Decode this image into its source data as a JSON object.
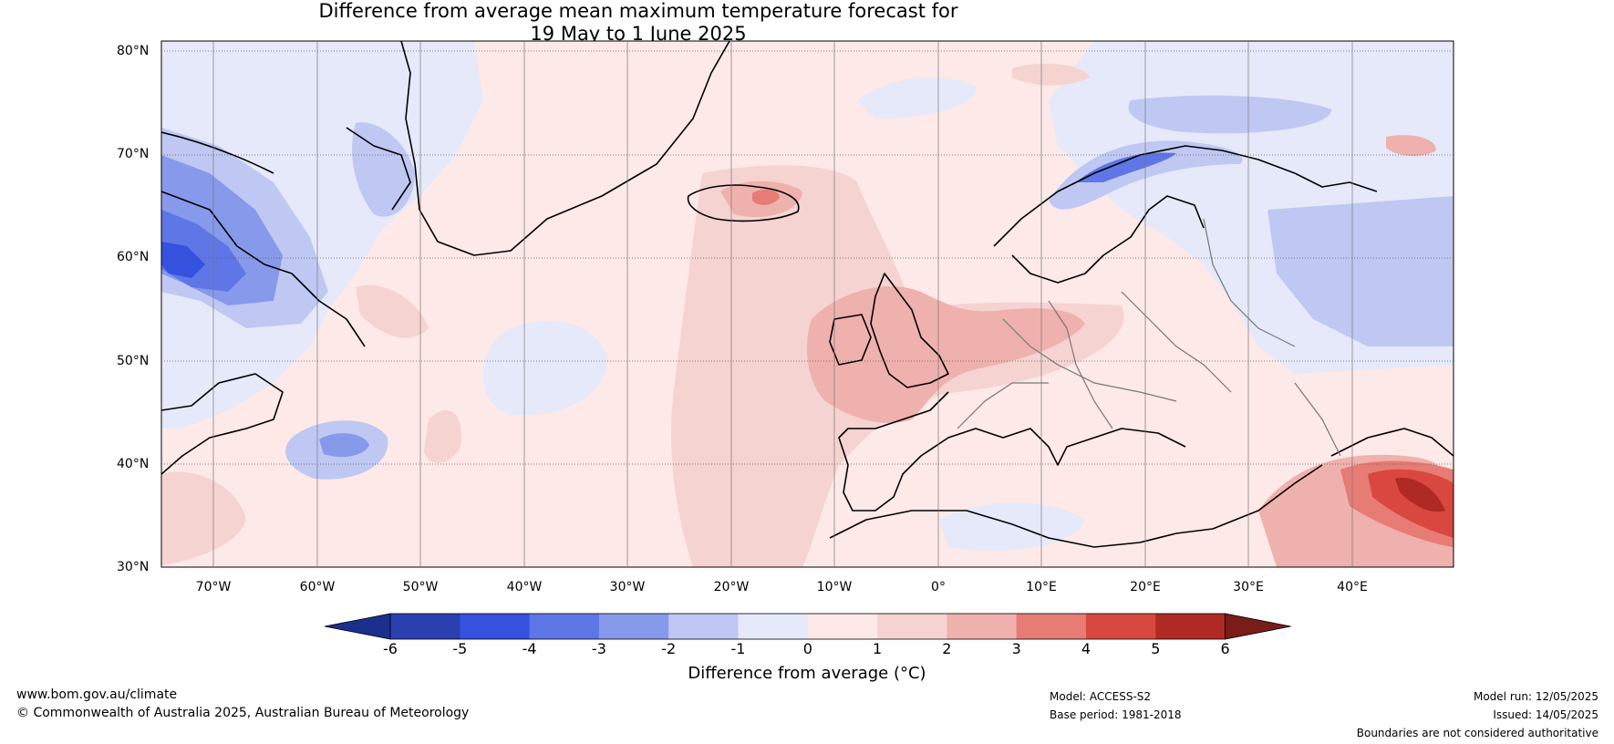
{
  "title": {
    "line1": "Difference from average mean maximum temperature forecast for",
    "line2": "19 May to 1 June 2025"
  },
  "axes": {
    "latitude_labels": [
      "80°N",
      "70°N",
      "60°N",
      "50°N",
      "40°N",
      "30°N"
    ],
    "longitude_labels": [
      "70°W",
      "60°W",
      "50°W",
      "40°W",
      "30°W",
      "20°W",
      "10°W",
      "0°",
      "10°E",
      "20°E",
      "30°E",
      "40°E"
    ]
  },
  "colorbar": {
    "title": "Difference from average (°C)",
    "ticks": [
      "-6",
      "-5",
      "-4",
      "-3",
      "-2",
      "-1",
      "0",
      "1",
      "2",
      "3",
      "4",
      "5",
      "6"
    ],
    "colors": [
      "#1c2f8c",
      "#2a3fb0",
      "#3551e0",
      "#5f76e6",
      "#8799ea",
      "#bfc8f3",
      "#e6e9fa",
      "#fce9e8",
      "#f5d3d1",
      "#efb1ad",
      "#e67c74",
      "#d94840",
      "#b02a24",
      "#7a1c18"
    ]
  },
  "footer": {
    "website": "www.bom.gov.au/climate",
    "copyright": "© Commonwealth of Australia 2025, Australian Bureau of Meteorology",
    "model": "Model: ACCESS-S2",
    "base_period": "Base period: 1981-2018",
    "model_run": "Model run: 12/05/2025",
    "issued": "Issued: 14/05/2025",
    "disclaimer": "Boundaries are not considered authoritative"
  }
}
